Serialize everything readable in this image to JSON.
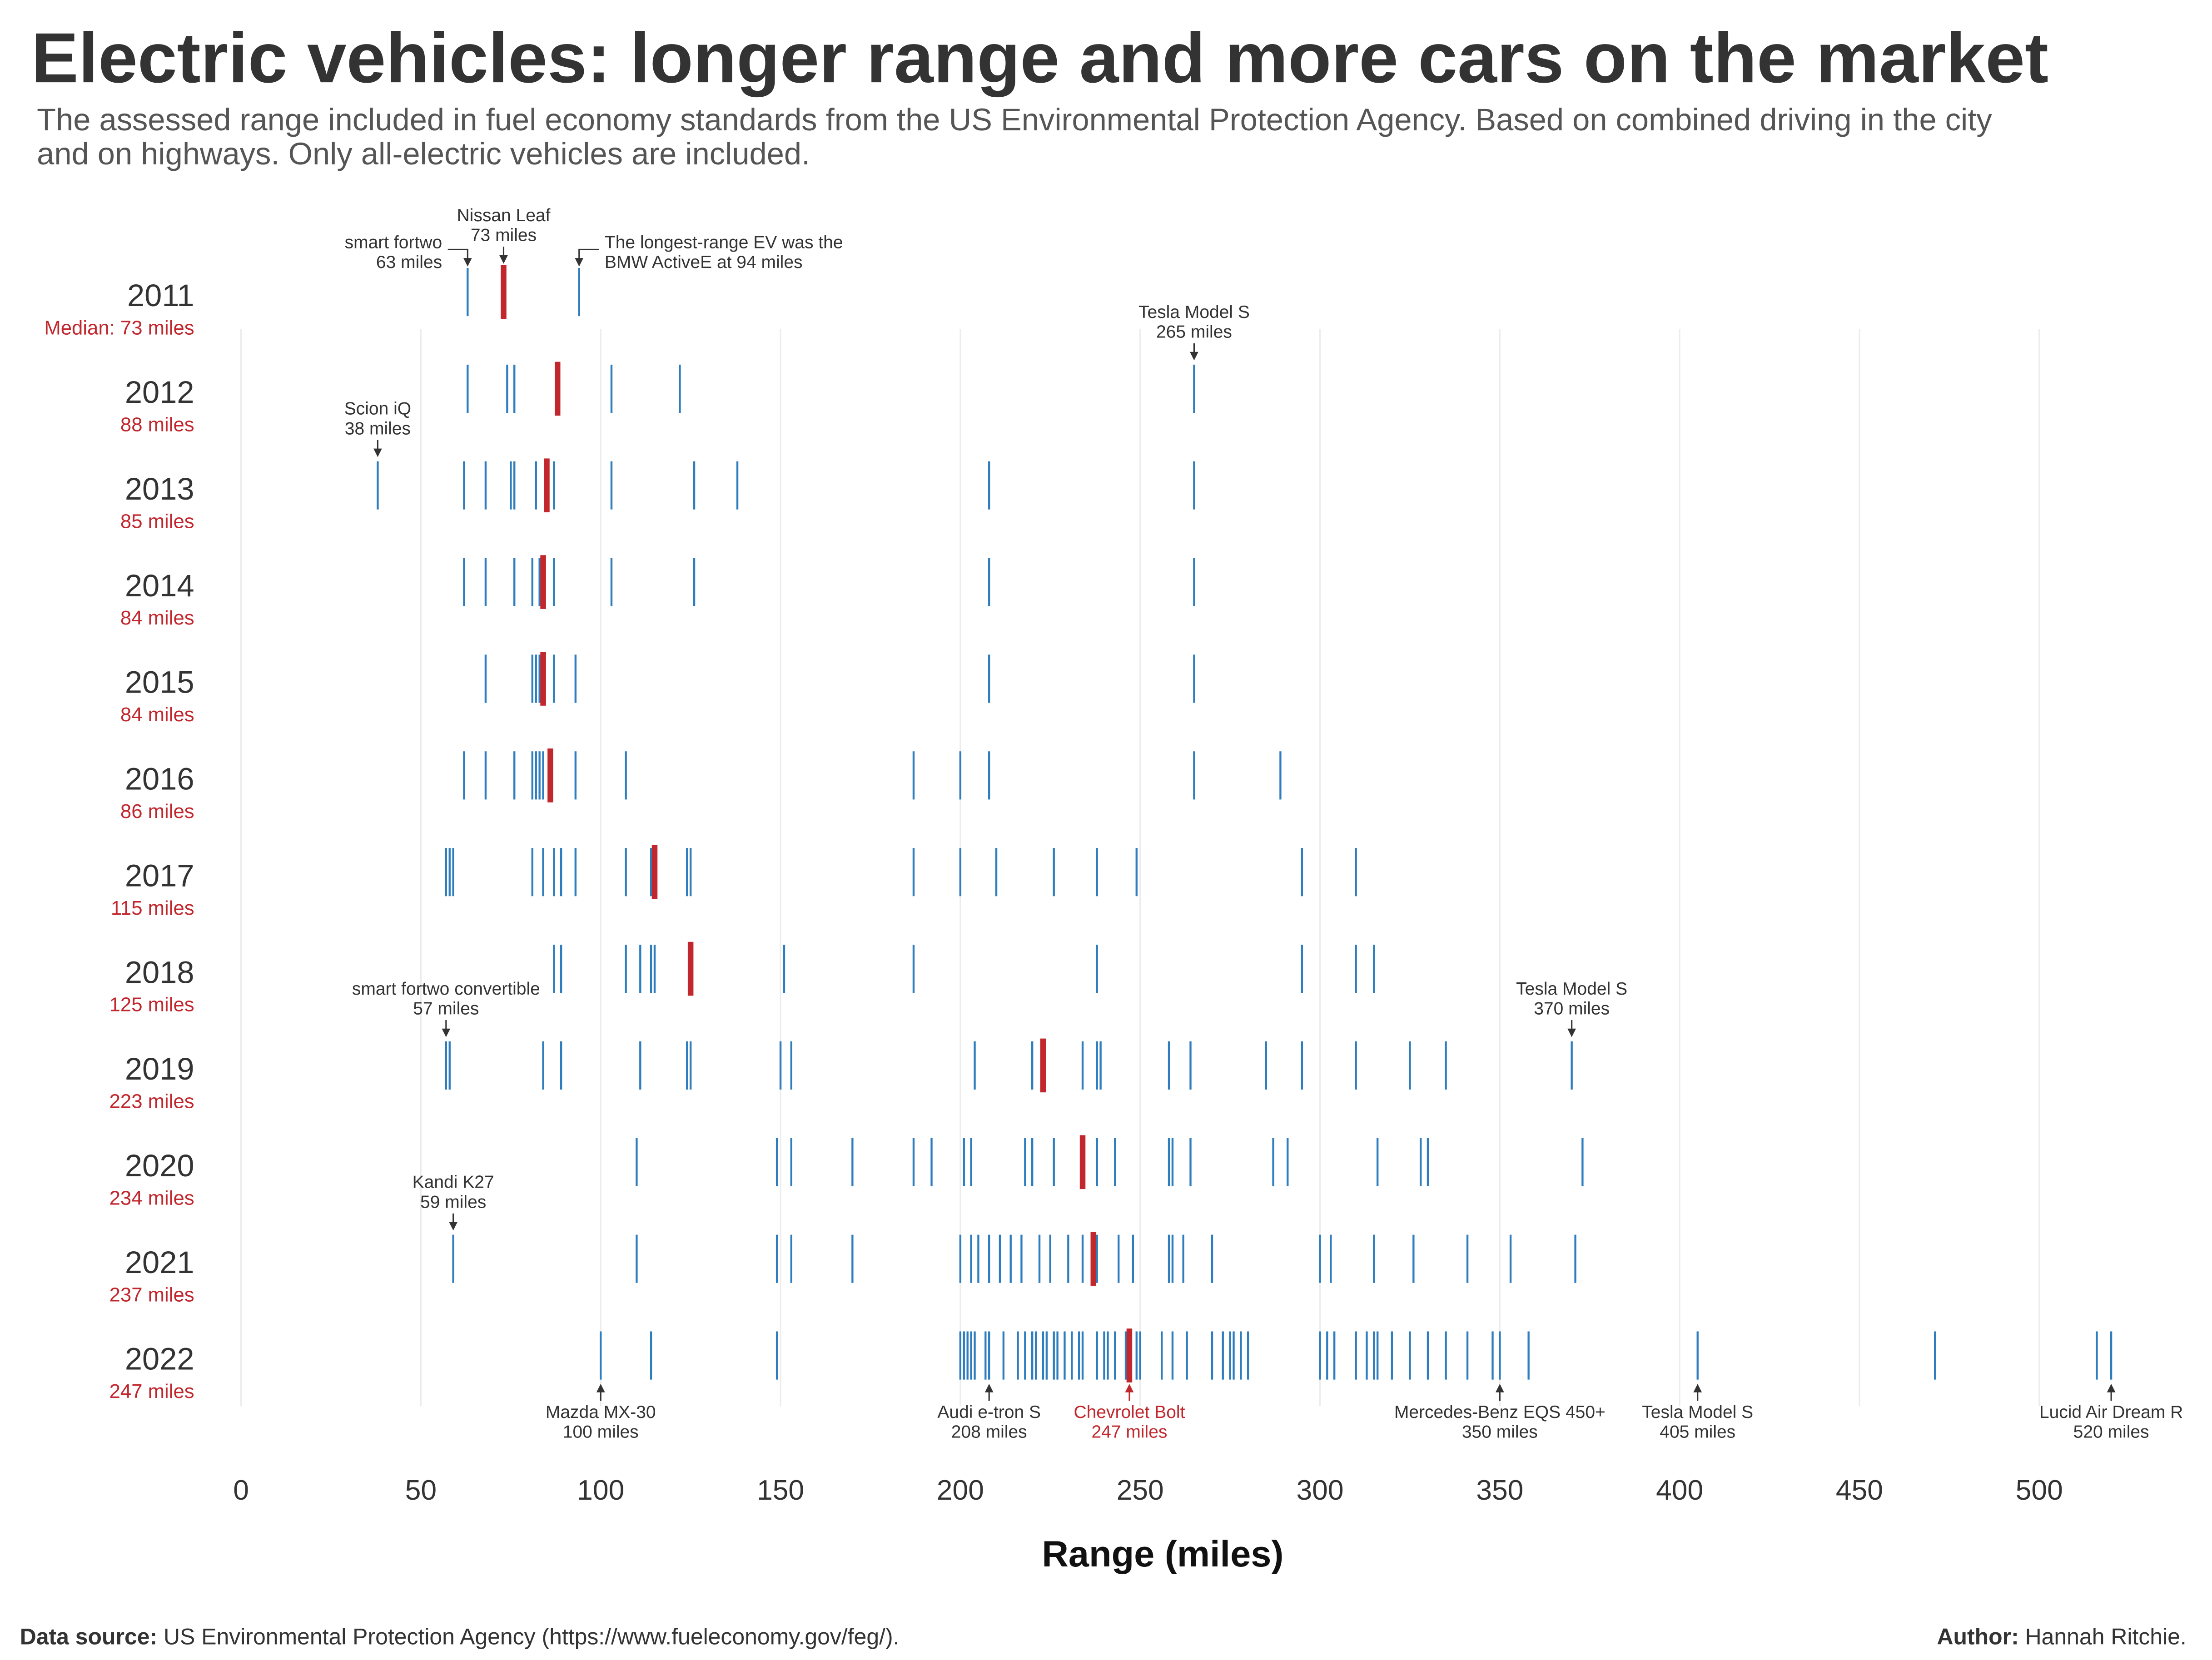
{
  "chart_data": {
    "type": "strip",
    "title": "Electric vehicles: longer range and more cars on the market",
    "subtitle": [
      "The assessed range included in fuel economy standards from the US Environmental Protection Agency. Based on combined driving in the city",
      "and on highways. Only all-electric vehicles are included."
    ],
    "x_label": "Range (miles)",
    "xlim": [
      0,
      550
    ],
    "xticks": [
      0,
      50,
      100,
      150,
      200,
      250,
      300,
      350,
      400,
      450,
      500
    ],
    "grid": true,
    "color": "#2e7ebf",
    "median_color": "#c1272d",
    "series": [
      {
        "name": "2011",
        "values": [
          63,
          73,
          94
        ],
        "median": 73,
        "median_label": "Median: 73 miles"
      },
      {
        "name": "2012",
        "values": [
          63,
          74,
          76,
          88,
          103,
          122,
          265
        ],
        "median": 88,
        "median_label": "88 miles"
      },
      {
        "name": "2013",
        "values": [
          38,
          62,
          68,
          75,
          76,
          82,
          85,
          87,
          103,
          126,
          138,
          208,
          265
        ],
        "median": 85,
        "median_label": "85 miles"
      },
      {
        "name": "2014",
        "values": [
          62,
          68,
          76,
          81,
          83,
          84,
          87,
          103,
          126,
          208,
          265
        ],
        "median": 84,
        "median_label": "84 miles"
      },
      {
        "name": "2015",
        "values": [
          68,
          81,
          82,
          83,
          84,
          87,
          93,
          208,
          265
        ],
        "median": 84,
        "median_label": "84 miles"
      },
      {
        "name": "2016",
        "values": [
          62,
          68,
          76,
          81,
          82,
          83,
          84,
          86,
          93,
          107,
          187,
          200,
          208,
          265,
          289
        ],
        "median": 86,
        "median_label": "86 miles"
      },
      {
        "name": "2017",
        "values": [
          57,
          58,
          59,
          81,
          84,
          87,
          89,
          93,
          107,
          114,
          115,
          124,
          125,
          187,
          200,
          210,
          226,
          238,
          249,
          295,
          310
        ],
        "median": 115,
        "median_label": "115 miles"
      },
      {
        "name": "2018",
        "values": [
          87,
          89,
          107,
          111,
          114,
          115,
          125,
          151,
          187,
          238,
          295,
          310,
          315
        ],
        "median": 125,
        "median_label": "125 miles"
      },
      {
        "name": "2019",
        "values": [
          57,
          58,
          84,
          89,
          111,
          124,
          125,
          150,
          153,
          204,
          220,
          223,
          234,
          238,
          239,
          258,
          264,
          285,
          295,
          310,
          325,
          335,
          370
        ],
        "median": 223,
        "median_label": "223 miles"
      },
      {
        "name": "2020",
        "values": [
          110,
          149,
          153,
          170,
          187,
          192,
          201,
          203,
          218,
          220,
          226,
          234,
          238,
          243,
          258,
          259,
          264,
          287,
          291,
          316,
          328,
          330,
          373
        ],
        "median": 234,
        "median_label": "234 miles"
      },
      {
        "name": "2021",
        "values": [
          59,
          110,
          149,
          153,
          170,
          200,
          203,
          205,
          208,
          211,
          214,
          217,
          222,
          225,
          230,
          234,
          237,
          238,
          244,
          248,
          258,
          259,
          262,
          270,
          300,
          303,
          315,
          326,
          341,
          353,
          371
        ],
        "median": 237,
        "median_label": "237 miles"
      },
      {
        "name": "2022",
        "values": [
          100,
          114,
          149,
          200,
          201,
          202,
          203,
          204,
          207,
          208,
          212,
          216,
          218,
          220,
          221,
          223,
          224,
          226,
          227,
          229,
          231,
          233,
          234,
          238,
          240,
          241,
          243,
          246,
          247,
          249,
          250,
          256,
          259,
          263,
          270,
          273,
          275,
          276,
          278,
          280,
          300,
          302,
          304,
          310,
          313,
          315,
          316,
          320,
          325,
          330,
          335,
          341,
          348,
          350,
          358,
          405,
          471,
          516,
          520
        ],
        "median": 247,
        "median_label": "247 miles"
      }
    ],
    "annotations": [
      {
        "series": 0,
        "value": 63,
        "lines": [
          "smart fortwo",
          "63 miles"
        ]
      },
      {
        "series": 0,
        "value": 73,
        "lines": [
          "Nissan Leaf",
          "73 miles"
        ]
      },
      {
        "series": 0,
        "value": 94,
        "lines": [
          "The longest-range EV was the",
          "BMW ActiveE at 94 miles"
        ]
      },
      {
        "series": 1,
        "value": 265,
        "lines": [
          "Tesla Model S",
          "265 miles"
        ]
      },
      {
        "series": 2,
        "value": 38,
        "lines": [
          "Scion iQ",
          "38 miles"
        ]
      },
      {
        "series": 8,
        "value": 57,
        "lines": [
          "smart fortwo convertible",
          "57 miles"
        ]
      },
      {
        "series": 8,
        "value": 370,
        "lines": [
          "Tesla Model S",
          "370 miles"
        ]
      },
      {
        "series": 10,
        "value": 59,
        "lines": [
          "Kandi K27",
          "59 miles"
        ]
      },
      {
        "series": 11,
        "value": 100,
        "lines": [
          "Mazda MX-30",
          "100 miles"
        ]
      },
      {
        "series": 11,
        "value": 208,
        "lines": [
          "Audi e-tron S",
          "208 miles"
        ]
      },
      {
        "series": 11,
        "value": 247,
        "lines": [
          "Chevrolet Bolt",
          "247 miles"
        ],
        "color": "#c1272d"
      },
      {
        "series": 11,
        "value": 350,
        "lines": [
          "Mercedes-Benz EQS 450+",
          "350 miles"
        ]
      },
      {
        "series": 11,
        "value": 405,
        "lines": [
          "Tesla Model S",
          "405 miles"
        ]
      },
      {
        "series": 11,
        "value": 520,
        "lines": [
          "Lucid Air Dream R",
          "520 miles"
        ]
      }
    ]
  },
  "footer": {
    "source_label": "Data source:",
    "source": "US Environmental Protection Agency (https://www.fueleconomy.gov/feg/).",
    "author_label": "Author:",
    "author": "Hannah Ritchie."
  }
}
